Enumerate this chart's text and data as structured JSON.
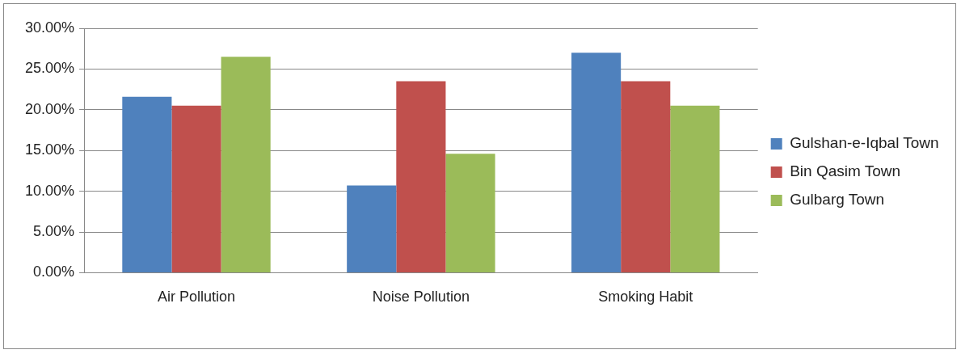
{
  "chart_data": {
    "type": "bar",
    "categories": [
      "Air Pollution",
      "Noise Pollution",
      "Smoking Habit"
    ],
    "series": [
      {
        "name": "Gulshan-e-Iqbal Town",
        "color": "#4f81bd",
        "values": [
          21.6,
          10.7,
          27.0
        ]
      },
      {
        "name": "Bin Qasim Town",
        "color": "#c0504d",
        "values": [
          20.5,
          23.5,
          23.5
        ]
      },
      {
        "name": "Gulbarg Town",
        "color": "#9bbb59",
        "values": [
          26.5,
          14.6,
          20.5
        ]
      }
    ],
    "ylim": [
      0,
      30
    ],
    "yticks": [
      {
        "value": 0,
        "label": "0.00%"
      },
      {
        "value": 5,
        "label": "5.00%"
      },
      {
        "value": 10,
        "label": "10.00%"
      },
      {
        "value": 15,
        "label": "15.00%"
      },
      {
        "value": 20,
        "label": "20.00%"
      },
      {
        "value": 25,
        "label": "25.00%"
      },
      {
        "value": 30,
        "label": "30.00%"
      }
    ],
    "grid": "y",
    "legend": "right"
  }
}
